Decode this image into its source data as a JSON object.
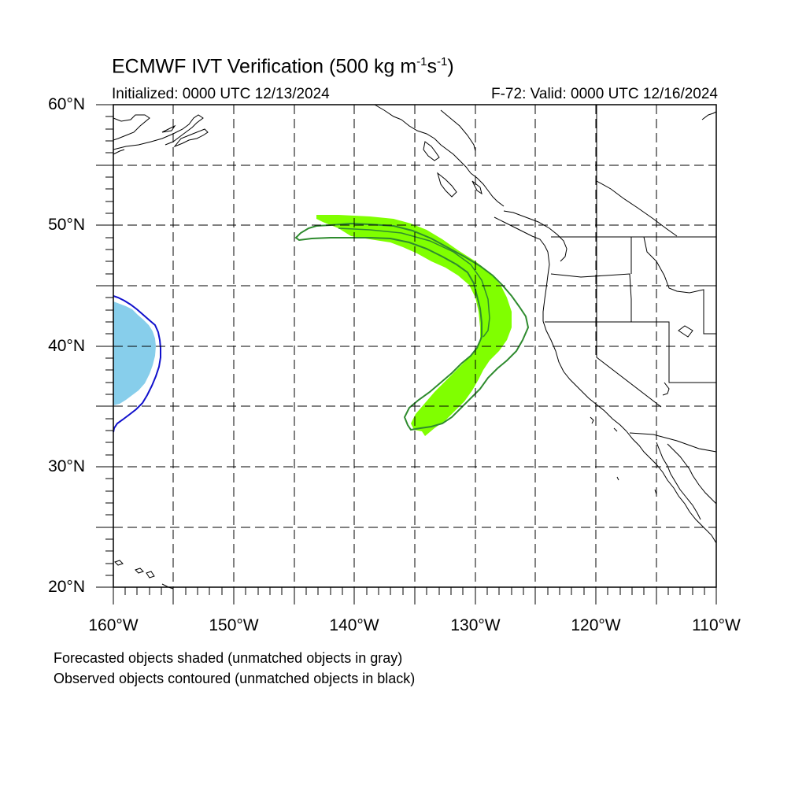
{
  "title": {
    "main": "ECMWF IVT Verification (500 kg m",
    "sup1": "-1",
    "mid": "s",
    "sup2": "-1",
    "end": ")"
  },
  "subtitle_left": "Initialized: 0000 UTC 12/13/2024",
  "subtitle_right": "F-72: Valid: 0000 UTC 12/16/2024",
  "lat_labels": [
    "60°N",
    "50°N",
    "40°N",
    "30°N",
    "20°N"
  ],
  "lon_labels": [
    "160°W",
    "150°W",
    "140°W",
    "130°W",
    "120°W",
    "110°W"
  ],
  "footnote_1": "Forecasted objects shaded (unmatched objects in gray)",
  "footnote_2": "Observed objects contoured (unmatched objects in black)",
  "map_extent": {
    "lon_min": -160,
    "lon_max": -110,
    "lat_min": 20,
    "lat_max": 60
  },
  "colors": {
    "forecast_matched_fill": "#80ff00",
    "observed_matched_contour": "#2e8b2e",
    "forecast_object2_fill": "#87ceeb",
    "observed_object2_contour": "#1010cc",
    "coast": "#000000",
    "grid": "#000000"
  }
}
